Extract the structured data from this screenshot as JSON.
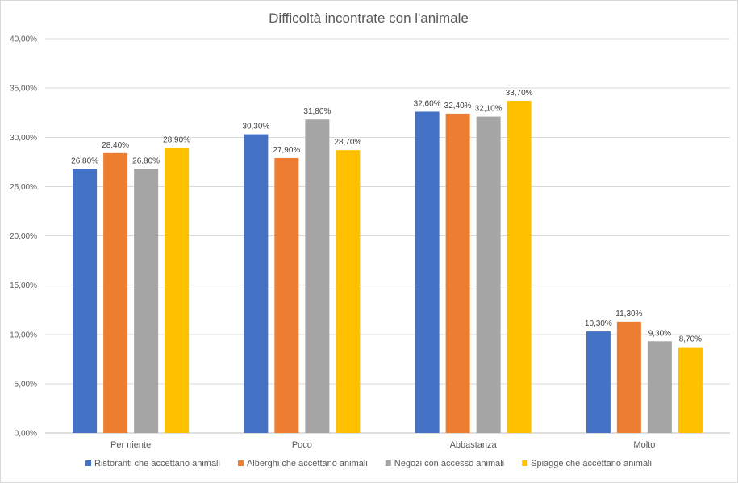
{
  "chart_data": {
    "type": "bar",
    "title": "Difficoltà incontrate con l'animale",
    "xlabel": "",
    "ylabel": "",
    "ylim": [
      0,
      40
    ],
    "yticks": [
      "0,00%",
      "5,00%",
      "10,00%",
      "15,00%",
      "20,00%",
      "25,00%",
      "30,00%",
      "35,00%",
      "40,00%"
    ],
    "ytick_values": [
      0,
      5,
      10,
      15,
      20,
      25,
      30,
      35,
      40
    ],
    "grid": true,
    "legend_position": "bottom",
    "categories": [
      "Per niente",
      "Poco",
      "Abbastanza",
      "Molto"
    ],
    "series": [
      {
        "name": "Ristoranti che accettano animali",
        "color": "#4472c4",
        "values": [
          26.8,
          30.3,
          32.6,
          10.3
        ],
        "labels": [
          "26,80%",
          "30,30%",
          "32,60%",
          "10,30%"
        ]
      },
      {
        "name": "Alberghi che accettano animali",
        "color": "#ed7d31",
        "values": [
          28.4,
          27.9,
          32.4,
          11.3
        ],
        "labels": [
          "28,40%",
          "27,90%",
          "32,40%",
          "11,30%"
        ]
      },
      {
        "name": "Negozi con accesso animali",
        "color": "#a5a5a5",
        "values": [
          26.8,
          31.8,
          32.1,
          9.3
        ],
        "labels": [
          "26,80%",
          "31,80%",
          "32,10%",
          "9,30%"
        ]
      },
      {
        "name": "Spiagge che accettano animali",
        "color": "#ffc000",
        "values": [
          28.9,
          28.7,
          33.7,
          8.7
        ],
        "labels": [
          "28,90%",
          "28,70%",
          "33,70%",
          "8,70%"
        ]
      }
    ]
  }
}
